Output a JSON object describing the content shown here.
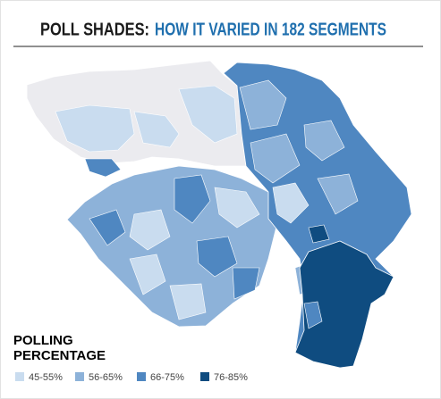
{
  "header": {
    "title_lead": "POLL SHADES:",
    "title_rest": "HOW IT VARIED IN 182 SEGMENTS",
    "lead_color": "#1a1a1a",
    "rest_color": "#1f6fae"
  },
  "legend": {
    "title_lines": [
      "POLLING",
      "PERCENTAGE"
    ],
    "items": [
      {
        "label": "45-55%",
        "color": "#c9dcef"
      },
      {
        "label": "56-65%",
        "color": "#8db2d9"
      },
      {
        "label": "66-75%",
        "color": "#4f87c1"
      },
      {
        "label": "76-85%",
        "color": "#0f4c80"
      }
    ]
  },
  "map": {
    "no_data_color": "#ebebef"
  }
}
